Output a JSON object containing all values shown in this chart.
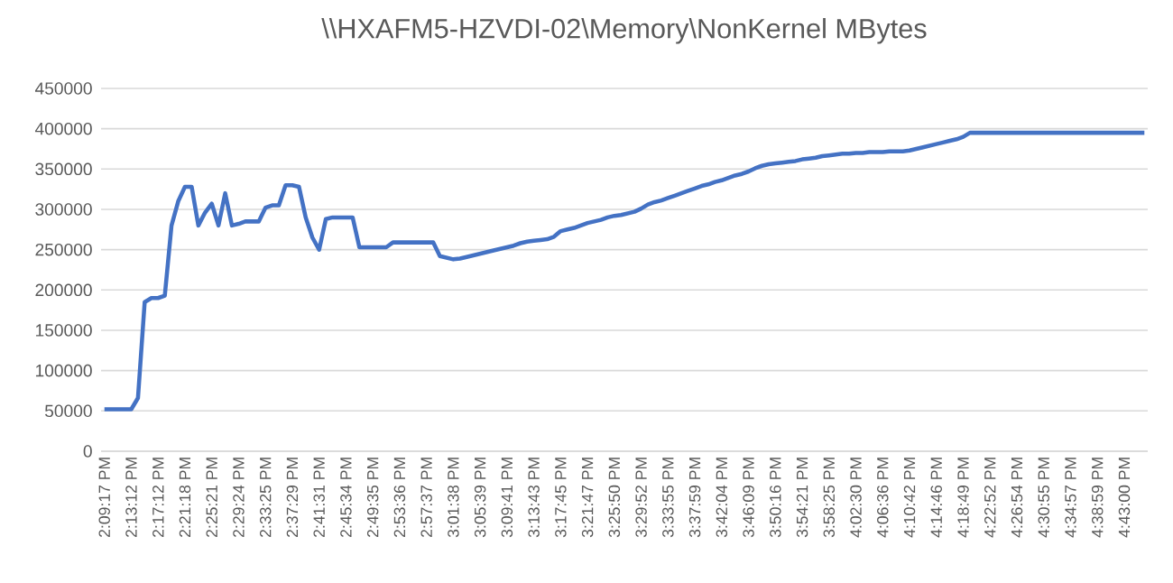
{
  "chart_data": {
    "type": "line",
    "title": "\\\\HXAFM5-HZVDI-02\\Memory\\NonKernel  MBytes",
    "categories": [
      "2:09:17 PM",
      null,
      null,
      null,
      "2:13:12 PM",
      null,
      null,
      null,
      "2:17:12 PM",
      null,
      null,
      null,
      "2:21:18 PM",
      null,
      null,
      null,
      "2:25:21 PM",
      null,
      null,
      null,
      "2:29:24 PM",
      null,
      null,
      null,
      "2:33:25 PM",
      null,
      null,
      null,
      "2:37:29 PM",
      null,
      null,
      null,
      "2:41:31 PM",
      null,
      null,
      null,
      "2:45:34 PM",
      null,
      null,
      null,
      "2:49:35 PM",
      null,
      null,
      null,
      "2:53:36 PM",
      null,
      null,
      null,
      "2:57:37 PM",
      null,
      null,
      null,
      "3:01:38 PM",
      null,
      null,
      null,
      "3:05:39 PM",
      null,
      null,
      null,
      "3:09:41 PM",
      null,
      null,
      null,
      "3:13:43 PM",
      null,
      null,
      null,
      "3:17:45 PM",
      null,
      null,
      null,
      "3:21:47 PM",
      null,
      null,
      null,
      "3:25:50 PM",
      null,
      null,
      null,
      "3:29:52 PM",
      null,
      null,
      null,
      "3:33:55 PM",
      null,
      null,
      null,
      "3:37:59 PM",
      null,
      null,
      null,
      "3:42:04 PM",
      null,
      null,
      null,
      "3:46:09 PM",
      null,
      null,
      null,
      "3:50:16 PM",
      null,
      null,
      null,
      "3:54:21 PM",
      null,
      null,
      null,
      "3:58:25 PM",
      null,
      null,
      null,
      "4:02:30 PM",
      null,
      null,
      null,
      "4:06:36 PM",
      null,
      null,
      null,
      "4:10:42 PM",
      null,
      null,
      null,
      "4:14:46 PM",
      null,
      null,
      null,
      "4:18:49 PM",
      null,
      null,
      null,
      "4:22:52 PM",
      null,
      null,
      null,
      "4:26:54 PM",
      null,
      null,
      null,
      "4:30:55 PM",
      null,
      null,
      null,
      "4:34:57 PM",
      null,
      null,
      null,
      "4:38:59 PM",
      null,
      null,
      null,
      "4:43:00 PM",
      null,
      null,
      null
    ],
    "series": [
      {
        "color": "#4472c4",
        "values": [
          52000,
          52000,
          52000,
          52000,
          52000,
          66000,
          185000,
          190000,
          190000,
          193000,
          280000,
          310000,
          328000,
          328000,
          280000,
          296000,
          307000,
          280000,
          320000,
          280000,
          282000,
          285000,
          285000,
          285000,
          302000,
          305000,
          305000,
          330000,
          330000,
          328000,
          290000,
          265000,
          250000,
          288000,
          290000,
          290000,
          290000,
          290000,
          253000,
          253000,
          253000,
          253000,
          253000,
          259000,
          259000,
          259000,
          259000,
          259000,
          259000,
          259000,
          242000,
          240000,
          238000,
          239000,
          241000,
          243000,
          245000,
          247000,
          249000,
          251000,
          253000,
          255000,
          258000,
          260000,
          261000,
          262000,
          263000,
          266000,
          273000,
          275000,
          277000,
          280000,
          283000,
          285000,
          287000,
          290000,
          292000,
          293000,
          295000,
          297000,
          301000,
          306000,
          309000,
          311000,
          314000,
          317000,
          320000,
          323000,
          326000,
          329000,
          331000,
          334000,
          336000,
          339000,
          342000,
          344000,
          347000,
          351000,
          354000,
          356000,
          357000,
          358000,
          359000,
          360000,
          362000,
          363000,
          364000,
          366000,
          367000,
          368000,
          369000,
          369000,
          370000,
          370000,
          371000,
          371000,
          371000,
          372000,
          372000,
          372000,
          373000,
          375000,
          377000,
          379000,
          381000,
          383000,
          385000,
          387000,
          390000,
          395000,
          395000,
          395000,
          395000,
          395000,
          395000,
          395000,
          395000,
          395000,
          395000,
          395000,
          395000,
          395000,
          395000,
          395000,
          395000,
          395000,
          395000,
          395000,
          395000,
          395000,
          395000,
          395000,
          395000,
          395000,
          395000,
          395000
        ]
      }
    ],
    "ylim": [
      0,
      450000
    ],
    "yticks": [
      0,
      50000,
      100000,
      150000,
      200000,
      250000,
      300000,
      350000,
      400000,
      450000
    ],
    "grid": "y",
    "legend": false,
    "marker": "none",
    "line_style": "solid"
  }
}
